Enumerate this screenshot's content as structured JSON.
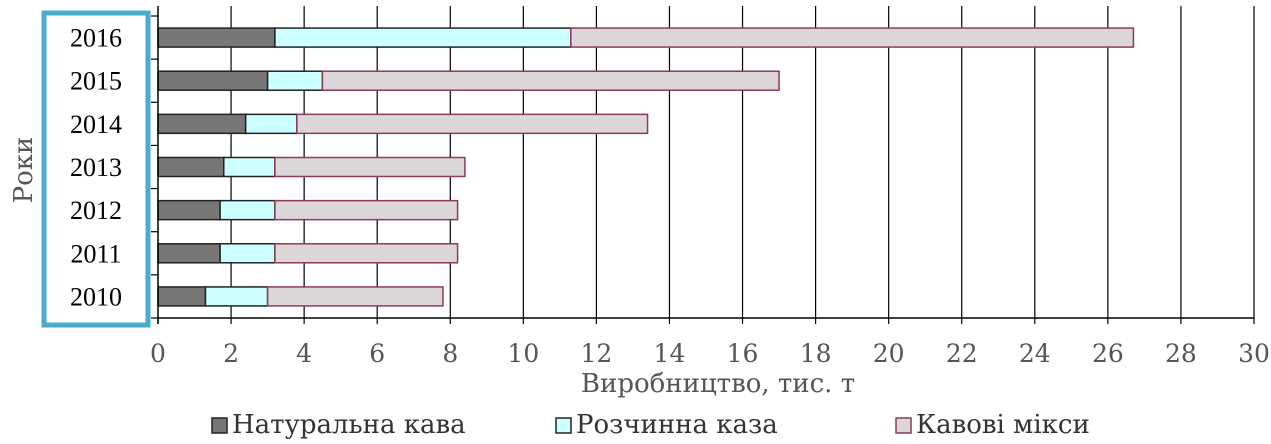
{
  "chart_data": {
    "type": "bar",
    "orientation": "horizontal",
    "stacked": true,
    "categories": [
      "2016",
      "2015",
      "2014",
      "2013",
      "2012",
      "2011",
      "2010"
    ],
    "series": [
      {
        "name": "Натуральна кава",
        "values": [
          3.2,
          3.0,
          2.4,
          1.8,
          1.7,
          1.7,
          1.3
        ],
        "color": "#777777",
        "stroke": "#222222"
      },
      {
        "name": "Розчинна каза",
        "values": [
          8.1,
          1.5,
          1.4,
          1.4,
          1.5,
          1.5,
          1.7
        ],
        "color": "#ccffff",
        "stroke": "#222222"
      },
      {
        "name": "Кавові мікси",
        "values": [
          15.4,
          12.5,
          9.6,
          5.2,
          5.0,
          5.0,
          4.8
        ],
        "color": "#dcd6d8",
        "stroke": "#8c3a5a"
      }
    ],
    "xlabel": "Виробництво, тис. т",
    "ylabel": "Роки",
    "xlim": [
      0,
      30
    ],
    "xticks": [
      "0",
      "2",
      "4",
      "6",
      "8",
      "10",
      "12",
      "14",
      "16",
      "18",
      "20",
      "22",
      "24",
      "26",
      "28",
      "30"
    ],
    "grid": "vertical",
    "legend_position": "bottom",
    "highlight": {
      "target": "year-labels",
      "color": "#4aaccc"
    }
  }
}
